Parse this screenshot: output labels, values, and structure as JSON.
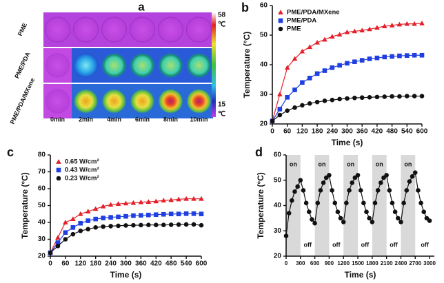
{
  "panel_a": {
    "label": "a",
    "rows": [
      "PME",
      "PME/PDA",
      "PME/PDA/MXene"
    ],
    "columns": [
      "0min",
      "2min",
      "4min",
      "6min",
      "8min",
      "10min"
    ],
    "colorbar": {
      "max": 58,
      "min": 15,
      "unit": "℃"
    }
  },
  "chart_data": [
    {
      "type": "line",
      "panel": "b",
      "xlabel": "Time (s)",
      "ylabel": "Temperature (°C)",
      "x": [
        0,
        30,
        60,
        90,
        120,
        150,
        180,
        210,
        240,
        270,
        300,
        330,
        360,
        390,
        420,
        450,
        480,
        510,
        540,
        570,
        600
      ],
      "xlim": [
        0,
        600
      ],
      "xticks": [
        0,
        60,
        120,
        180,
        240,
        300,
        360,
        420,
        480,
        540,
        600
      ],
      "ylim": [
        20,
        60
      ],
      "yticks": [
        20,
        30,
        40,
        50,
        60
      ],
      "legend": "top-left",
      "series": [
        {
          "name": "PME/PDA/MXene",
          "color": "#e3202a",
          "marker": "triangle",
          "values": [
            21,
            30,
            39,
            42,
            44.5,
            46,
            47.5,
            48.5,
            49.5,
            50.2,
            51,
            51.3,
            51.6,
            52,
            52.5,
            53,
            53.3,
            53.6,
            53.8,
            53.8,
            54
          ]
        },
        {
          "name": "PME/PDA",
          "color": "#1f3fe0",
          "marker": "square",
          "values": [
            21,
            25,
            29,
            31.5,
            34,
            35.5,
            37,
            38,
            39,
            39.8,
            40.5,
            41,
            41.5,
            42,
            42.3,
            42.6,
            42.8,
            43,
            43.1,
            43.2,
            43.2
          ]
        },
        {
          "name": "PME",
          "color": "#111111",
          "marker": "circle",
          "values": [
            21,
            23,
            24.5,
            25.5,
            26.3,
            26.9,
            27.4,
            27.8,
            28.1,
            28.4,
            28.6,
            28.8,
            28.9,
            29,
            29.1,
            29.2,
            29.3,
            29.3,
            29.4,
            29.4,
            29.4
          ]
        }
      ]
    },
    {
      "type": "line",
      "panel": "c",
      "xlabel": "Time (s)",
      "ylabel": "Temperature (°C)",
      "x": [
        0,
        30,
        60,
        90,
        120,
        150,
        180,
        210,
        240,
        270,
        300,
        330,
        360,
        390,
        420,
        450,
        480,
        510,
        540,
        570,
        600
      ],
      "xlim": [
        0,
        600
      ],
      "xticks": [
        0,
        60,
        120,
        180,
        240,
        300,
        360,
        420,
        480,
        540,
        600
      ],
      "ylim": [
        20,
        80
      ],
      "yticks": [
        20,
        30,
        40,
        50,
        60,
        70,
        80
      ],
      "legend": "top-left",
      "series": [
        {
          "name": "0.65 W/cm²",
          "color": "#e3202a",
          "marker": "triangle",
          "values": [
            22,
            31,
            40,
            42,
            45,
            46.5,
            48,
            49.5,
            50.5,
            51,
            51.3,
            51.6,
            52,
            52.2,
            52.5,
            53,
            53.3,
            53.7,
            54,
            54,
            54
          ]
        },
        {
          "name": "0.43 W/cm²",
          "color": "#1f3fe0",
          "marker": "square",
          "values": [
            22,
            28,
            34,
            37,
            39.5,
            41,
            42,
            42.6,
            43,
            43.3,
            43.6,
            44,
            44.2,
            44.4,
            44.6,
            44.8,
            45,
            45,
            45.2,
            45.2,
            45
          ]
        },
        {
          "name": "0.23 W/cm²",
          "color": "#111111",
          "marker": "circle",
          "values": [
            22,
            26,
            30,
            33,
            35,
            36,
            37,
            37.5,
            37.8,
            38,
            38.2,
            38.3,
            38.4,
            38.5,
            38.5,
            38.5,
            38.6,
            38.7,
            38.8,
            38.8,
            38.3
          ]
        }
      ]
    },
    {
      "type": "cycle",
      "panel": "d",
      "xlabel": "Time (s)",
      "ylabel": "Temperature (°C)",
      "x": [
        0,
        60,
        120,
        180,
        240,
        300,
        360,
        420,
        480,
        540,
        600,
        660,
        720,
        780,
        840,
        900,
        960,
        1020,
        1080,
        1140,
        1200,
        1260,
        1320,
        1380,
        1440,
        1500,
        1560,
        1620,
        1680,
        1740,
        1800,
        1860,
        1920,
        1980,
        2040,
        2100,
        2160,
        2220,
        2280,
        2340,
        2400,
        2460,
        2520,
        2580,
        2640,
        2700,
        2760,
        2820,
        2880,
        2940,
        3000
      ],
      "values": [
        28,
        37,
        42,
        45.5,
        47.5,
        50,
        46,
        41,
        37.5,
        34.5,
        33,
        41,
        46,
        49,
        51,
        52,
        46,
        41,
        37.5,
        35,
        33.5,
        41,
        46,
        49,
        51,
        52,
        46,
        41,
        37.5,
        35,
        33.5,
        41,
        46,
        49,
        51,
        52,
        46,
        41,
        37.5,
        35,
        33.5,
        41,
        46,
        49.5,
        51.5,
        53,
        46,
        41,
        37.5,
        35,
        34
      ],
      "color": "#111111",
      "marker": "circle",
      "xlim": [
        0,
        3100
      ],
      "xticks": [
        0,
        300,
        600,
        900,
        1200,
        1500,
        1800,
        2100,
        2400,
        2700,
        3000
      ],
      "ylim": [
        20,
        60
      ],
      "yticks": [
        20,
        30,
        40,
        50,
        60
      ],
      "on_periods": [
        [
          0,
          300
        ],
        [
          600,
          900
        ],
        [
          1200,
          1500
        ],
        [
          1800,
          2100
        ],
        [
          2400,
          2700
        ]
      ],
      "on_label": "on",
      "off_label": "off"
    }
  ]
}
